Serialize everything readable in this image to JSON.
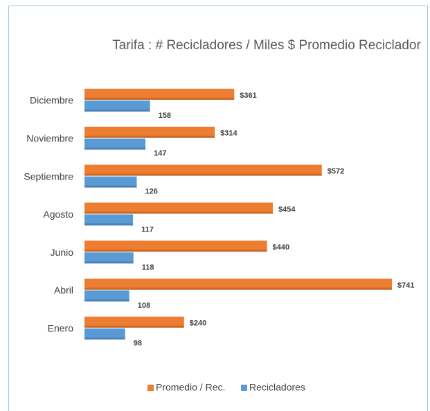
{
  "chart_data": {
    "type": "bar",
    "orientation": "horizontal",
    "title": "Tarifa : # Recicladores / Miles $ Promedio  Reciclador",
    "categories": [
      "Diciembre",
      "Noviembre",
      "Septiembre",
      "Agosto",
      "Junio",
      "Abril",
      "Enero"
    ],
    "series": [
      {
        "name": "Promedio / Rec.",
        "color": "#ed7d31",
        "values": [
          361,
          314,
          572,
          454,
          440,
          741,
          240
        ],
        "value_labels": [
          "$361",
          "$314",
          "$572",
          "$454",
          "$440",
          "$741",
          "$240"
        ]
      },
      {
        "name": "Recicladores",
        "color": "#5b9bd5",
        "values": [
          158,
          147,
          126,
          117,
          118,
          108,
          98
        ]
      }
    ],
    "legend": "bottom"
  }
}
